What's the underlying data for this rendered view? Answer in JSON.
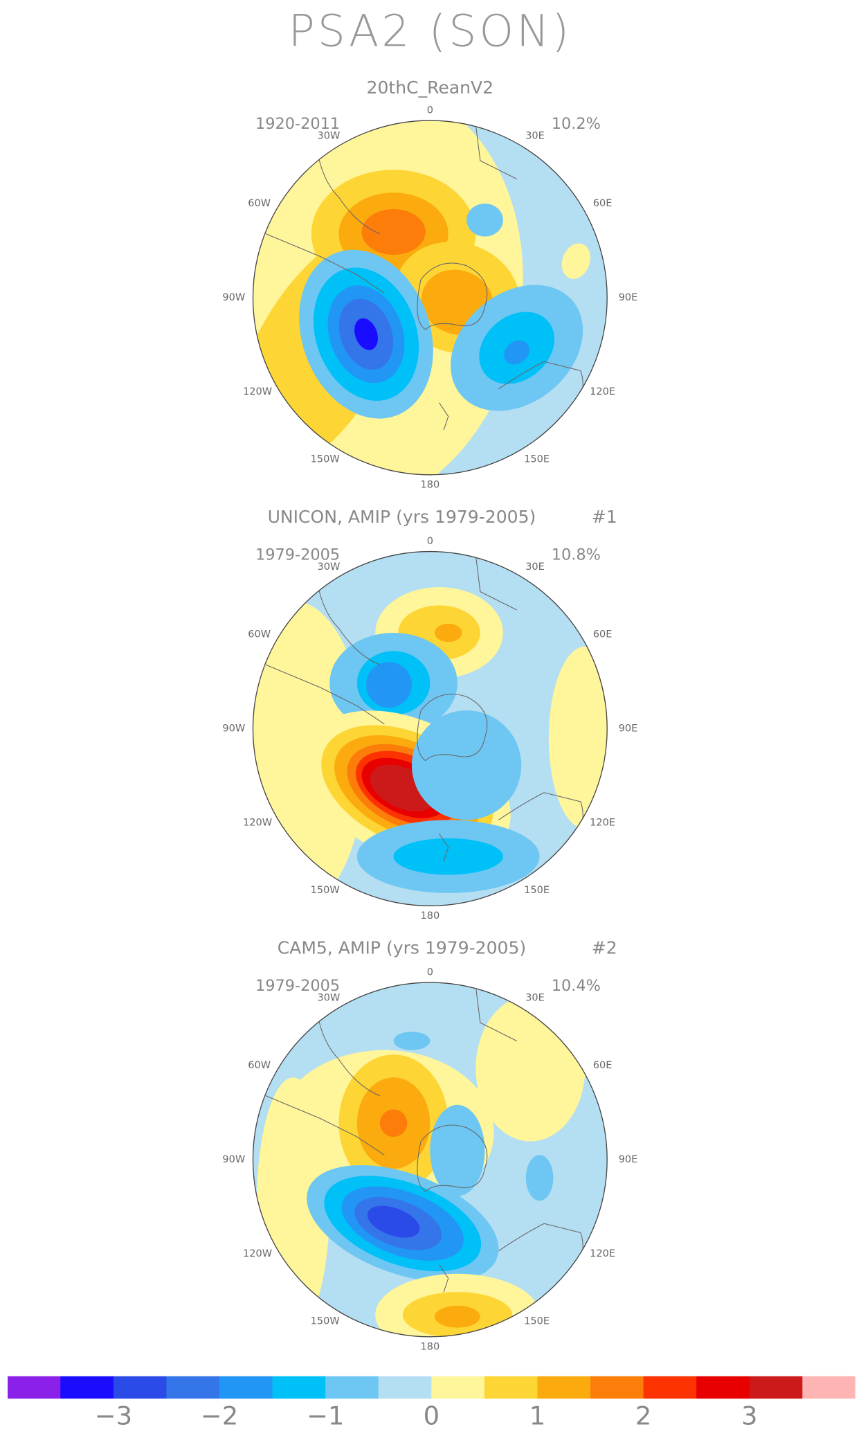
{
  "title": "PSA2 (SON)",
  "longitude_labels": [
    "0",
    "30E",
    "60E",
    "90E",
    "120E",
    "150E",
    "180",
    "150W",
    "120W",
    "90W",
    "60W",
    "30W"
  ],
  "panels": [
    {
      "title": "20thC_ReanV2",
      "years": "1920-2011",
      "variance": "10.2%"
    },
    {
      "title": "UNICON, AMIP (yrs 1979-2005)",
      "number": "#1",
      "years": "1979-2005",
      "variance": "10.8%"
    },
    {
      "title": "CAM5, AMIP (yrs 1979-2005)",
      "number": "#2",
      "years": "1979-2005",
      "variance": "10.4%"
    }
  ],
  "colorbar": {
    "colors": [
      "#8b20e8",
      "#1a0dff",
      "#2a4be8",
      "#3575ea",
      "#2196f5",
      "#00c0f8",
      "#6ec6f2",
      "#b4def2",
      "#fff59a",
      "#fdd535",
      "#fcab0e",
      "#fc7d0a",
      "#fc3300",
      "#e80000",
      "#cc1a1a",
      "#ffb4b4"
    ],
    "lim": [
      -4,
      4
    ],
    "ticks": [
      {
        "value": -3,
        "label": "−3"
      },
      {
        "value": -2,
        "label": "−2"
      },
      {
        "value": -1,
        "label": "−1"
      },
      0,
      1,
      2,
      3
    ]
  }
}
